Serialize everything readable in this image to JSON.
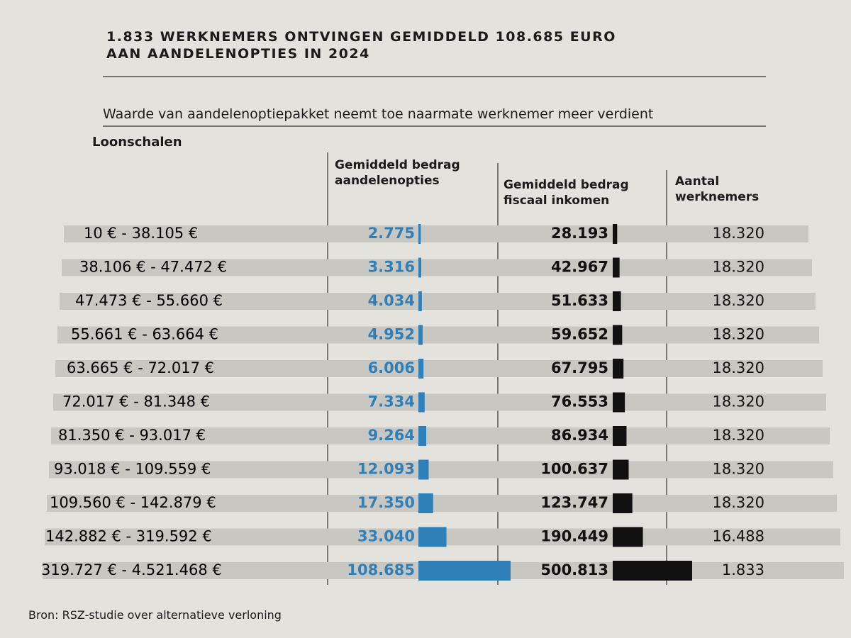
{
  "chart_data": {
    "type": "bar-table",
    "title": "1.833 WERKNEMERS ONTVINGEN GEMIDDELD 108.685 EURO AAN AANDELENOPTIES IN 2024",
    "subtitle": "Waarde van aandelenoptiepakket neemt toe naarmate werknemer meer verdient",
    "category_header": "Loonschalen",
    "categories": [
      "10 € - 38.105 €",
      "38.106 € - 47.472 €",
      "47.473 € - 55.660 €",
      "55.661 € - 63.664 €",
      "63.665 € - 72.017 €",
      "72.017 € - 81.348 €",
      "81.350 € - 93.017 €",
      "93.018 € - 109.559 €",
      "109.560 € - 142.879 €",
      "142.882 € - 319.592 €",
      "319.727 € - 4.521.468 €"
    ],
    "series": [
      {
        "name": "Gemiddeld bedrag aandelenopties",
        "color": "#2f7fb8",
        "bars": true,
        "values": [
          2775,
          3316,
          4034,
          4952,
          6006,
          7334,
          9264,
          12093,
          17350,
          33040,
          108685
        ],
        "value_labels": [
          "2.775",
          "3.316",
          "4.034",
          "4.952",
          "6.006",
          "7.334",
          "9.264",
          "12.093",
          "17.350",
          "33.040",
          "108.685"
        ]
      },
      {
        "name": "Gemiddeld bedrag fiscaal inkomen",
        "color": "#111111",
        "bars": true,
        "values": [
          28193,
          42967,
          51633,
          59652,
          67795,
          76553,
          86934,
          100637,
          123747,
          190449,
          500813
        ],
        "value_labels": [
          "28.193",
          "42.967",
          "51.633",
          "59.652",
          "67.795",
          "76.553",
          "86.934",
          "100.637",
          "123.747",
          "190.449",
          "500.813"
        ]
      },
      {
        "name": "Aantal werknemers",
        "color": "#222222",
        "bars": false,
        "values": [
          18320,
          18320,
          18320,
          18320,
          18320,
          18320,
          18320,
          18320,
          18320,
          16488,
          1833
        ],
        "value_labels": [
          "18.320",
          "18.320",
          "18.320",
          "18.320",
          "18.320",
          "18.320",
          "18.320",
          "18.320",
          "18.320",
          "16.488",
          "1.833"
        ]
      }
    ],
    "source": "Bron: RSZ-studie over alternatieve verloning"
  }
}
